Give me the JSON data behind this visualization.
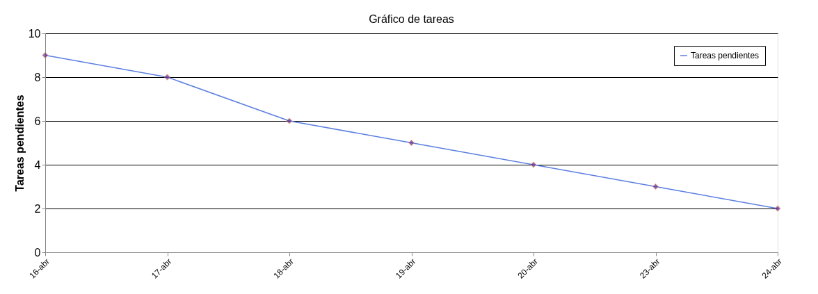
{
  "chart_data": {
    "type": "line",
    "title": "Gráfico de tareas",
    "ylabel": "Tareas pendientes",
    "categories": [
      "16-abr",
      "17-abr",
      "18-abr",
      "19-abr",
      "20-abr",
      "23-abr",
      "24-abr"
    ],
    "series": [
      {
        "name": "Tareas pendientes",
        "color": "#5b7fe0",
        "values": [
          9,
          8,
          6,
          5,
          4,
          3,
          2
        ]
      }
    ],
    "ylim": [
      0,
      10
    ],
    "yticks": [
      0,
      2,
      4,
      6,
      8,
      10
    ],
    "grid": "y",
    "legend": "top right",
    "marker": "diamond",
    "line_style": "solid"
  }
}
